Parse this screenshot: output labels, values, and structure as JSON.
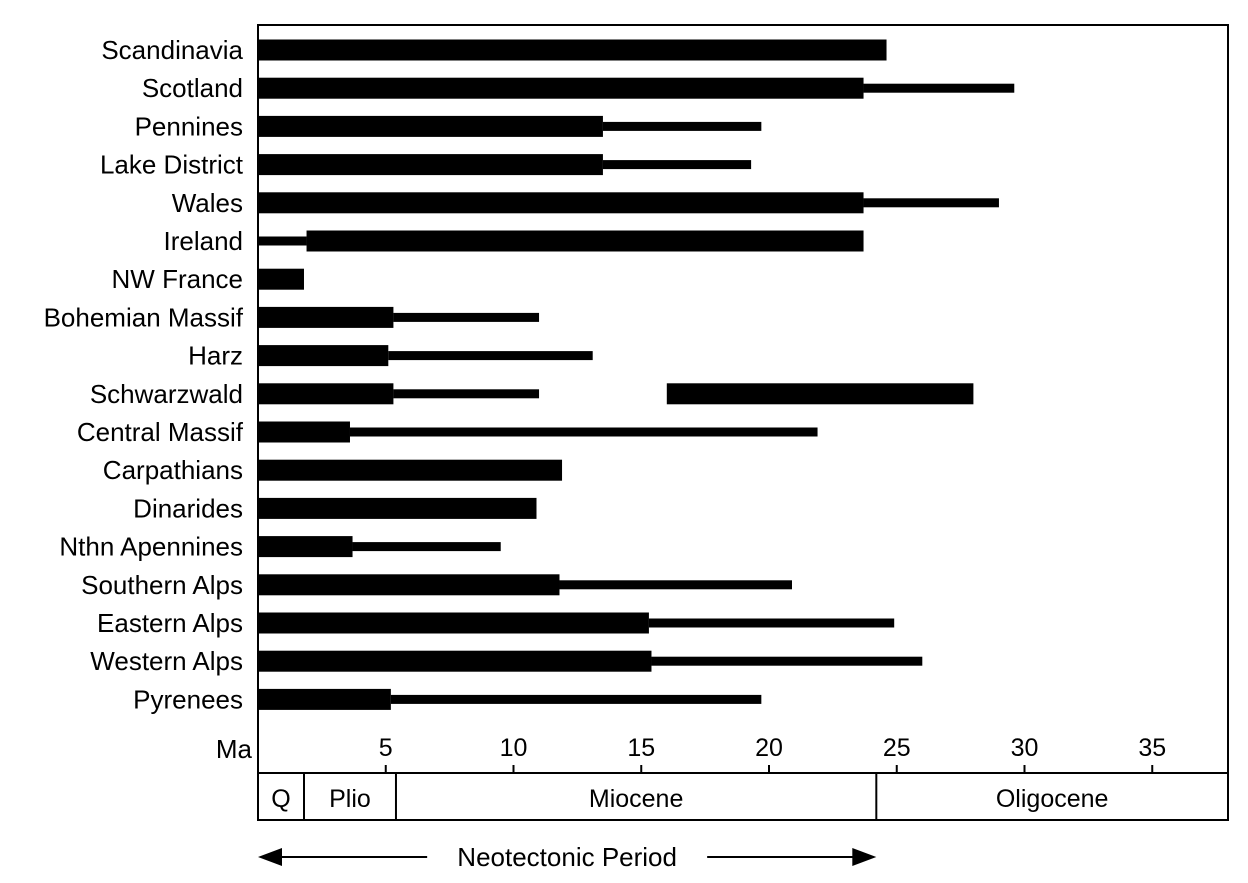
{
  "chart_data": {
    "type": "bar",
    "orientation": "horizontal",
    "title": "",
    "xlabel": "Ma",
    "xlim": [
      0,
      38
    ],
    "x_ticks": [
      5,
      10,
      15,
      20,
      25,
      30,
      35
    ],
    "x_tick_labels": [
      "5",
      "10",
      "15",
      "20",
      "25",
      "30",
      "35"
    ],
    "grid": false,
    "regions": [
      {
        "name": "Scandinavia",
        "segments": [
          {
            "from": 0,
            "to": 24.6,
            "style": "thick"
          }
        ]
      },
      {
        "name": "Scotland",
        "segments": [
          {
            "from": 0,
            "to": 23.7,
            "style": "thick"
          },
          {
            "from": 23.7,
            "to": 29.6,
            "style": "thin"
          }
        ]
      },
      {
        "name": "Pennines",
        "segments": [
          {
            "from": 0,
            "to": 13.5,
            "style": "thick"
          },
          {
            "from": 13.5,
            "to": 19.7,
            "style": "thin"
          }
        ]
      },
      {
        "name": "Lake District",
        "segments": [
          {
            "from": 0,
            "to": 13.5,
            "style": "thick"
          },
          {
            "from": 13.5,
            "to": 19.3,
            "style": "thin"
          }
        ]
      },
      {
        "name": "Wales",
        "segments": [
          {
            "from": 0,
            "to": 23.7,
            "style": "thick"
          },
          {
            "from": 23.7,
            "to": 29.0,
            "style": "thin"
          }
        ]
      },
      {
        "name": "Ireland",
        "segments": [
          {
            "from": 0,
            "to": 1.9,
            "style": "thin"
          },
          {
            "from": 1.9,
            "to": 23.7,
            "style": "thick"
          }
        ]
      },
      {
        "name": "NW France",
        "segments": [
          {
            "from": 0,
            "to": 1.8,
            "style": "thick"
          }
        ]
      },
      {
        "name": "Bohemian Massif",
        "segments": [
          {
            "from": 0,
            "to": 5.3,
            "style": "thick"
          },
          {
            "from": 5.3,
            "to": 11.0,
            "style": "thin"
          }
        ]
      },
      {
        "name": "Harz",
        "segments": [
          {
            "from": 0,
            "to": 5.1,
            "style": "thick"
          },
          {
            "from": 5.1,
            "to": 13.1,
            "style": "thin"
          }
        ]
      },
      {
        "name": "Schwarzwald",
        "segments": [
          {
            "from": 0,
            "to": 5.3,
            "style": "thick"
          },
          {
            "from": 5.3,
            "to": 11.0,
            "style": "thin"
          },
          {
            "from": 16.0,
            "to": 28.0,
            "style": "thick"
          }
        ]
      },
      {
        "name": "Central Massif",
        "segments": [
          {
            "from": 0,
            "to": 3.6,
            "style": "thick"
          },
          {
            "from": 3.6,
            "to": 21.9,
            "style": "thin"
          }
        ]
      },
      {
        "name": "Carpathians",
        "segments": [
          {
            "from": 0,
            "to": 11.9,
            "style": "thick"
          }
        ]
      },
      {
        "name": "Dinarides",
        "segments": [
          {
            "from": 0,
            "to": 10.9,
            "style": "thick"
          }
        ]
      },
      {
        "name": "Nthn Apennines",
        "segments": [
          {
            "from": 0,
            "to": 3.7,
            "style": "thick"
          },
          {
            "from": 3.7,
            "to": 9.5,
            "style": "thin"
          }
        ]
      },
      {
        "name": "Southern Alps",
        "segments": [
          {
            "from": 0,
            "to": 11.8,
            "style": "thick"
          },
          {
            "from": 11.8,
            "to": 20.9,
            "style": "thin"
          }
        ]
      },
      {
        "name": "Eastern Alps",
        "segments": [
          {
            "from": 0,
            "to": 15.3,
            "style": "thick"
          },
          {
            "from": 15.3,
            "to": 24.9,
            "style": "thin"
          }
        ]
      },
      {
        "name": "Western Alps",
        "segments": [
          {
            "from": 0,
            "to": 15.4,
            "style": "thick"
          },
          {
            "from": 15.4,
            "to": 26.0,
            "style": "thin"
          }
        ]
      },
      {
        "name": "Pyrenees",
        "segments": [
          {
            "from": 0,
            "to": 5.2,
            "style": "thick"
          },
          {
            "from": 5.2,
            "to": 19.7,
            "style": "thin"
          }
        ]
      }
    ],
    "epochs": [
      {
        "label": "Q",
        "from": 0,
        "to": 1.8
      },
      {
        "label": "Plio",
        "from": 1.8,
        "to": 5.4
      },
      {
        "label": "Miocene",
        "from": 5.4,
        "to": 24.2
      },
      {
        "label": "Oligocene",
        "from": 24.2,
        "to": 38
      }
    ],
    "neotectonic_period": {
      "label": "Neotectonic Period",
      "from": 0,
      "to": 24.2
    }
  },
  "colors": {
    "bar": "#000000",
    "frame": "#000000",
    "background": "#ffffff"
  }
}
